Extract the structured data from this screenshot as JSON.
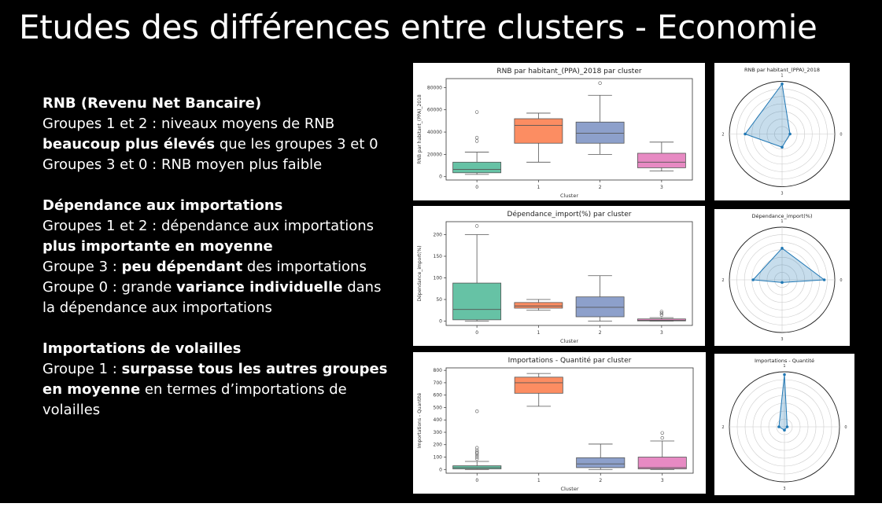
{
  "title": "Etudes des différences entre clusters - Economie",
  "sections": [
    {
      "heading": "RNB (Revenu Net Bancaire)",
      "lines": [
        [
          {
            "t": "Groupes 1 et 2 : niveaux moyens de RNB",
            "b": false
          }
        ],
        [
          {
            "t": "beaucoup plus élevés",
            "b": true
          },
          {
            "t": " que les groupes 3 et 0",
            "b": false
          }
        ],
        [
          {
            "t": "Groupes 3 et 0 : RNB moyen plus faible",
            "b": false
          }
        ]
      ]
    },
    {
      "heading": "Dépendance aux importations",
      "lines": [
        [
          {
            "t": "Groupes 1 et 2 : dépendance aux importations",
            "b": false
          }
        ],
        [
          {
            "t": "plus importante en moyenne",
            "b": true
          }
        ],
        [
          {
            "t": "Groupe 3 : ",
            "b": false
          },
          {
            "t": "peu dépendant",
            "b": true
          },
          {
            "t": " des importations",
            "b": false
          }
        ],
        [
          {
            "t": "Groupe 0 : grande ",
            "b": false
          },
          {
            "t": "variance individuelle",
            "b": true
          },
          {
            "t": " dans",
            "b": false
          }
        ],
        [
          {
            "t": "la dépendance aux importations",
            "b": false
          }
        ]
      ]
    },
    {
      "heading": "Importations de volailles",
      "lines": [
        [
          {
            "t": "Groupe 1 : ",
            "b": false
          },
          {
            "t": "surpasse tous les autres groupes",
            "b": true
          }
        ],
        [
          {
            "t": "en moyenne",
            "b": true
          },
          {
            "t": " en termes d’importations de",
            "b": false
          }
        ],
        [
          {
            "t": "volailles",
            "b": false
          }
        ]
      ]
    }
  ],
  "chart_data": [
    {
      "type": "boxplot",
      "title": "RNB par habitant_(PPA)_2018 par cluster",
      "xlabel": "Cluster",
      "ylabel": "RNB par habitant_(PPA)_2018",
      "ylim": [
        -3000,
        88000
      ],
      "yticks": [
        0,
        20000,
        40000,
        60000,
        80000
      ],
      "categories": [
        "0",
        "1",
        "2",
        "3"
      ],
      "colors": [
        "#66c2a5",
        "#fc8d62",
        "#8da0cb",
        "#e78ac3"
      ],
      "boxes": [
        {
          "whislo": 2000,
          "q1": 3500,
          "med": 6500,
          "q3": 13000,
          "whishi": 22000,
          "fliers": [
            58000,
            35000,
            32000
          ]
        },
        {
          "whislo": 13000,
          "q1": 30000,
          "med": 46000,
          "q3": 52000,
          "whishi": 57000,
          "fliers": []
        },
        {
          "whislo": 20000,
          "q1": 30000,
          "med": 39000,
          "q3": 49000,
          "whishi": 73000,
          "fliers": [
            84000
          ]
        },
        {
          "whislo": 5000,
          "q1": 8000,
          "med": 13000,
          "q3": 21000,
          "whishi": 31000,
          "fliers": []
        }
      ]
    },
    {
      "type": "radar",
      "title": "RNB par habitant_(PPA)_2018",
      "axes": [
        "0",
        "1",
        "2",
        "3"
      ],
      "values": [
        0.15,
        0.95,
        0.7,
        0.25
      ]
    },
    {
      "type": "boxplot",
      "title": "Dépendance_import(%) par cluster",
      "xlabel": "Cluster",
      "ylabel": "Dépendance_import(%)",
      "ylim": [
        -10,
        230
      ],
      "yticks": [
        0,
        50,
        100,
        150,
        200
      ],
      "categories": [
        "0",
        "1",
        "2",
        "3"
      ],
      "colors": [
        "#66c2a5",
        "#fc8d62",
        "#8da0cb",
        "#e78ac3"
      ],
      "boxes": [
        {
          "whislo": 0,
          "q1": 3,
          "med": 27,
          "q3": 88,
          "whishi": 200,
          "fliers": [
            220
          ]
        },
        {
          "whislo": 25,
          "q1": 30,
          "med": 35,
          "q3": 43,
          "whishi": 50,
          "fliers": []
        },
        {
          "whislo": 0,
          "q1": 10,
          "med": 32,
          "q3": 56,
          "whishi": 105,
          "fliers": []
        },
        {
          "whislo": 0,
          "q1": 0.5,
          "med": 2,
          "q3": 5,
          "whishi": 8,
          "fliers": [
            14,
            18,
            22
          ]
        }
      ]
    },
    {
      "type": "radar",
      "title": "Dépendance_import(%)",
      "axes": [
        "0",
        "1",
        "2",
        "3"
      ],
      "values": [
        0.8,
        0.6,
        0.55,
        0.05
      ]
    },
    {
      "type": "boxplot",
      "title": "Importations - Quantité par cluster",
      "xlabel": "Cluster",
      "ylabel": "Importations - Quantité",
      "ylim": [
        -30,
        820
      ],
      "yticks": [
        0,
        100,
        200,
        300,
        400,
        500,
        600,
        700,
        800
      ],
      "categories": [
        "0",
        "1",
        "2",
        "3"
      ],
      "colors": [
        "#66c2a5",
        "#fc8d62",
        "#8da0cb",
        "#e78ac3"
      ],
      "boxes": [
        {
          "whislo": 0,
          "q1": 5,
          "med": 15,
          "q3": 30,
          "whishi": 65,
          "fliers": [
            470,
            175,
            155,
            140,
            130,
            115,
            100,
            85
          ]
        },
        {
          "whislo": 510,
          "q1": 615,
          "med": 700,
          "q3": 745,
          "whishi": 775,
          "fliers": []
        },
        {
          "whislo": 0,
          "q1": 15,
          "med": 45,
          "q3": 95,
          "whishi": 205,
          "fliers": []
        },
        {
          "whislo": 0,
          "q1": 5,
          "med": 15,
          "q3": 100,
          "whishi": 230,
          "fliers": [
            295,
            255
          ]
        }
      ]
    },
    {
      "type": "radar",
      "title": "Importations - Quantité",
      "axes": [
        "0",
        "1",
        "2",
        "3"
      ],
      "values": [
        0.05,
        0.95,
        0.1,
        0.06
      ]
    }
  ]
}
